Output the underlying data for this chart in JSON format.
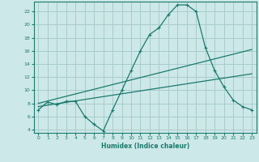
{
  "title": "",
  "xlabel": "Humidex (Indice chaleur)",
  "ylabel": "",
  "bg_color": "#cde8e8",
  "grid_color": "#a8cccc",
  "line_color": "#1a7a6e",
  "xlim": [
    -0.5,
    23.5
  ],
  "ylim": [
    3.5,
    23.5
  ],
  "xticks": [
    0,
    1,
    2,
    3,
    4,
    5,
    6,
    7,
    8,
    9,
    10,
    11,
    12,
    13,
    14,
    15,
    16,
    17,
    18,
    19,
    20,
    21,
    22,
    23
  ],
  "yticks": [
    4,
    6,
    8,
    10,
    12,
    14,
    16,
    18,
    20,
    22
  ],
  "line1_x": [
    0,
    1,
    2,
    3,
    4,
    5,
    6,
    7,
    8,
    9,
    10,
    11,
    12,
    13,
    14,
    15,
    16,
    17,
    18,
    19,
    20,
    21,
    22,
    23
  ],
  "line1_y": [
    7.0,
    8.2,
    7.8,
    8.3,
    8.3,
    6.0,
    4.8,
    3.8,
    7.0,
    10.0,
    13.0,
    16.0,
    18.5,
    19.5,
    21.5,
    23.0,
    23.0,
    22.0,
    16.5,
    13.0,
    10.5,
    8.5,
    7.5,
    7.0
  ],
  "line2_x": [
    0,
    23
  ],
  "line2_y": [
    8.0,
    16.2
  ],
  "line3_x": [
    0,
    23
  ],
  "line3_y": [
    7.5,
    12.5
  ]
}
